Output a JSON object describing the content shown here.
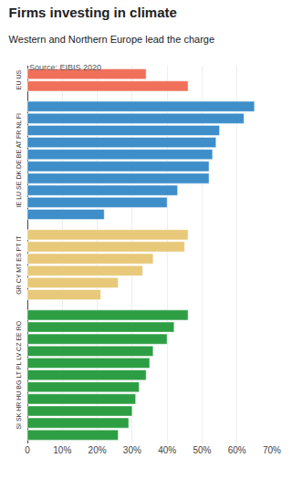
{
  "chart_data": {
    "type": "bar",
    "orientation": "horizontal",
    "title": "Firms investing in climate",
    "subtitle": "Western and Northern Europe lead the charge",
    "annotations": [
      "Source: EIBIS 2020"
    ],
    "categories": [
      null,
      null,
      null,
      null,
      null,
      null,
      null,
      null,
      null,
      null,
      null,
      null,
      null,
      null,
      null,
      null,
      null,
      null,
      null,
      null,
      null,
      null,
      null,
      null,
      null,
      null,
      null,
      null,
      null
    ],
    "series": [
      {
        "name": "EU US",
        "color": "#f0705a",
        "values": [
          34,
          46,
          null,
          null,
          null,
          null,
          null,
          null,
          null,
          null,
          null,
          null,
          null,
          null,
          null,
          null,
          null,
          null,
          null,
          null,
          null,
          null,
          null,
          null,
          null,
          null,
          null,
          null,
          null
        ]
      },
      {
        "name": "IE LU SE DK DE BE AT FR NL FI",
        "color": "#3d8ec9",
        "values": [
          null,
          null,
          65,
          62,
          55,
          54,
          53,
          52,
          52,
          43,
          40,
          22,
          null,
          null,
          null,
          null,
          null,
          null,
          null,
          null,
          null,
          null,
          null,
          null,
          null,
          null,
          null,
          null,
          null
        ]
      },
      {
        "name": "GR CY MT ES PT IT",
        "color": "#e8c97a",
        "values": [
          null,
          null,
          null,
          null,
          null,
          null,
          null,
          null,
          null,
          null,
          null,
          null,
          46,
          45,
          36,
          33,
          26,
          21,
          null,
          null,
          null,
          null,
          null,
          null,
          null,
          null,
          null,
          null,
          null
        ]
      },
      {
        "name": "SI SK HR HU BG LT PL LV CZ EE RO",
        "color": "#2e9e44",
        "values": [
          null,
          null,
          null,
          null,
          null,
          null,
          null,
          null,
          null,
          null,
          null,
          null,
          null,
          null,
          null,
          null,
          null,
          null,
          46,
          42,
          40,
          36,
          35,
          34,
          32,
          31,
          30,
          29,
          26
        ]
      }
    ],
    "xlim": [
      0,
      70
    ],
    "xticks": [
      0,
      {
        "value": 10,
        "label": "10%"
      },
      {
        "value": 20,
        "label": "20%"
      },
      {
        "value": 30,
        "label": "30%"
      },
      {
        "value": 40,
        "label": "40%"
      },
      {
        "value": 50,
        "label": "50%"
      },
      {
        "value": 60,
        "label": "60%"
      },
      {
        "value": 70,
        "label": "70%"
      }
    ],
    "grid": true,
    "tick_labels": "x"
  }
}
